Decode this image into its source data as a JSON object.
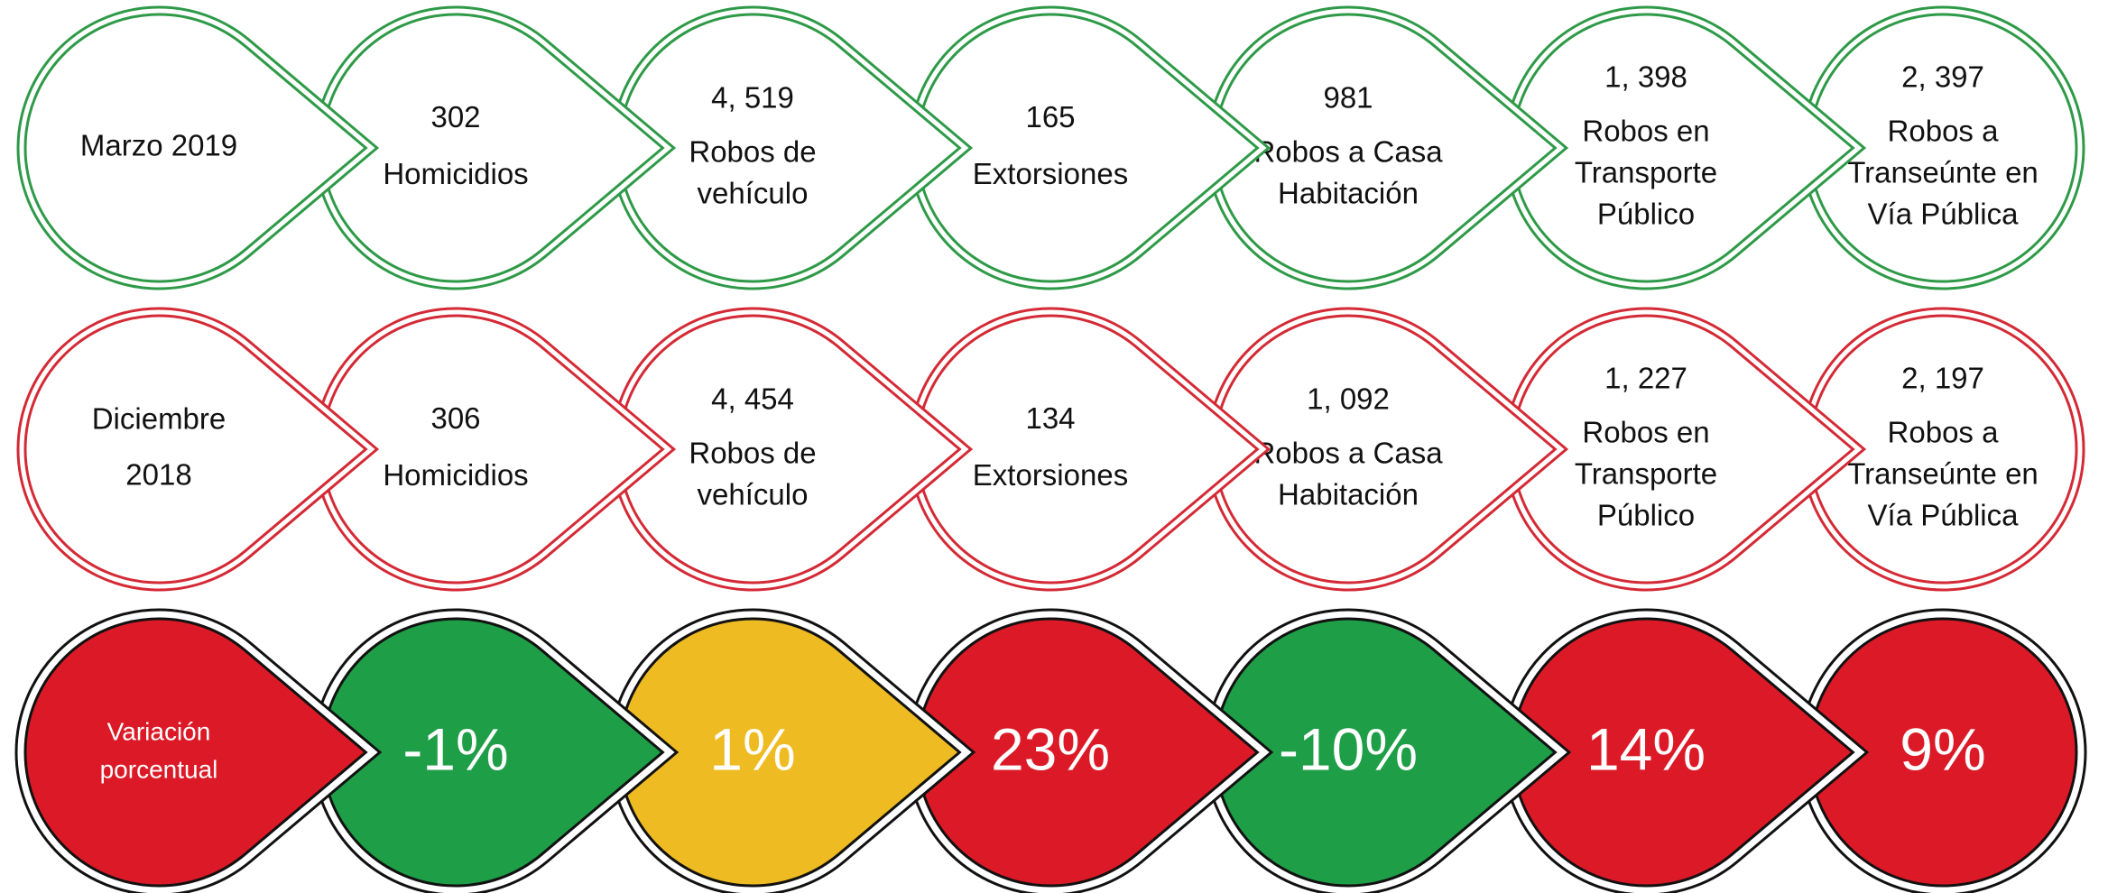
{
  "rows": [
    {
      "title": [
        "Marzo 2019"
      ],
      "color": "#2e9a48",
      "items": [
        {
          "value": "302",
          "label": [
            "Homicidios"
          ]
        },
        {
          "value": "4, 519",
          "label": [
            "Robos de",
            "vehículo"
          ]
        },
        {
          "value": "165",
          "label": [
            "Extorsiones"
          ]
        },
        {
          "value": "981",
          "label": [
            "Robos a Casa",
            "Habitación"
          ]
        },
        {
          "value": "1, 398",
          "label": [
            "Robos en",
            "Transporte",
            "Público"
          ]
        },
        {
          "value": "2, 397",
          "label": [
            "Robos a",
            "Transeúnte en",
            "Vía Pública"
          ]
        }
      ]
    },
    {
      "title": [
        "Diciembre",
        "2018"
      ],
      "color": "#d42a36",
      "items": [
        {
          "value": "306",
          "label": [
            "Homicidios"
          ]
        },
        {
          "value": "4, 454",
          "label": [
            "Robos de",
            "vehículo"
          ]
        },
        {
          "value": "134",
          "label": [
            "Extorsiones"
          ]
        },
        {
          "value": "1, 092",
          "label": [
            "Robos a Casa",
            "Habitación"
          ]
        },
        {
          "value": "1, 227",
          "label": [
            "Robos en",
            "Transporte",
            "Público"
          ]
        },
        {
          "value": "2, 197",
          "label": [
            "Robos a",
            "Transeúnte en",
            "Vía Pública"
          ]
        }
      ]
    }
  ],
  "variation": {
    "title": [
      "Variación",
      "porcentual"
    ],
    "color": "#dc1a27",
    "items": [
      {
        "value": "-1%",
        "color": "#1e9e46"
      },
      {
        "value": "1%",
        "color": "#eebb22"
      },
      {
        "value": "23%",
        "color": "#dc1a27"
      },
      {
        "value": "-10%",
        "color": "#1e9e46"
      },
      {
        "value": "14%",
        "color": "#dc1a27"
      },
      {
        "value": "9%",
        "color": "#dc1a27"
      }
    ]
  }
}
